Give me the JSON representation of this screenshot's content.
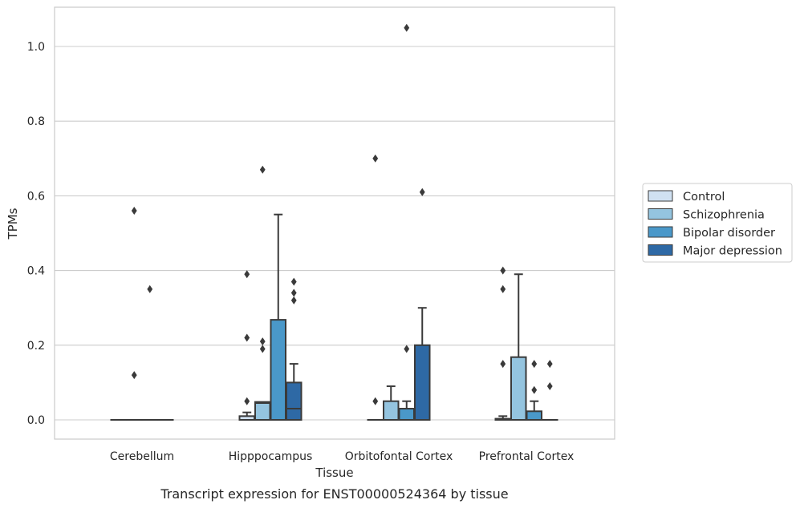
{
  "chart_data": {
    "type": "box",
    "title": "",
    "caption": "Transcript expression for ENST00000524364 by tissue",
    "xlabel": "Tissue",
    "ylabel": "TPMs",
    "ylim": [
      -0.05,
      1.1
    ],
    "yticks": [
      0.0,
      0.2,
      0.4,
      0.6,
      0.8,
      1.0
    ],
    "ytick_labels": [
      "0.0",
      "0.2",
      "0.4",
      "0.6",
      "0.8",
      "1.0"
    ],
    "grid": true,
    "legend_position": "right",
    "categories": [
      "Cerebellum",
      "Hipppocampus",
      "Orbitofontal Cortex",
      "Prefrontal Cortex"
    ],
    "series": [
      {
        "name": "Control",
        "color": "#d0e1f2",
        "boxes": [
          {
            "q1": 0,
            "median": 0,
            "q3": 0,
            "whislo": 0,
            "whishi": 0,
            "fliers": []
          },
          {
            "q1": 0,
            "median": 0,
            "q3": 0.01,
            "whislo": 0,
            "whishi": 0.02,
            "fliers": [
              0.05,
              0.22,
              0.39
            ]
          },
          {
            "q1": 0,
            "median": 0,
            "q3": 0,
            "whislo": 0,
            "whishi": 0,
            "fliers": [
              0.05,
              0.7
            ]
          },
          {
            "q1": 0,
            "median": 0,
            "q3": 0.003,
            "whislo": 0,
            "whishi": 0.01,
            "fliers": [
              0.15,
              0.35,
              0.4
            ]
          }
        ]
      },
      {
        "name": "Schizophrenia",
        "color": "#94c4df",
        "boxes": [
          {
            "q1": 0,
            "median": 0,
            "q3": 0,
            "whislo": 0,
            "whishi": 0,
            "fliers": [
              0.12,
              0.56
            ]
          },
          {
            "q1": 0,
            "median": 0.045,
            "q3": 0.048,
            "whislo": 0,
            "whishi": 0.048,
            "fliers": [
              0.19,
              0.21,
              0.67
            ]
          },
          {
            "q1": 0,
            "median": 0,
            "q3": 0.05,
            "whislo": 0,
            "whishi": 0.09,
            "fliers": []
          },
          {
            "q1": 0,
            "median": 0,
            "q3": 0.168,
            "whislo": 0,
            "whishi": 0.39,
            "fliers": []
          }
        ]
      },
      {
        "name": "Bipolar disorder",
        "color": "#4a98c9",
        "boxes": [
          {
            "q1": 0,
            "median": 0,
            "q3": 0,
            "whislo": 0,
            "whishi": 0,
            "fliers": [
              0.35
            ]
          },
          {
            "q1": 0,
            "median": 0,
            "q3": 0.268,
            "whislo": 0,
            "whishi": 0.55,
            "fliers": []
          },
          {
            "q1": 0,
            "median": 0,
            "q3": 0.03,
            "whislo": 0,
            "whishi": 0.05,
            "fliers": [
              0.19,
              1.05
            ]
          },
          {
            "q1": 0,
            "median": 0,
            "q3": 0.023,
            "whislo": 0,
            "whishi": 0.05,
            "fliers": [
              0.08,
              0.15
            ]
          }
        ]
      },
      {
        "name": "Major depression",
        "color": "#2e69a5",
        "boxes": [
          {
            "q1": 0,
            "median": 0,
            "q3": 0,
            "whislo": 0,
            "whishi": 0,
            "fliers": []
          },
          {
            "q1": 0,
            "median": 0.03,
            "q3": 0.1,
            "whislo": 0,
            "whishi": 0.15,
            "fliers": [
              0.32,
              0.34,
              0.37
            ]
          },
          {
            "q1": 0,
            "median": 0,
            "q3": 0.2,
            "whislo": 0,
            "whishi": 0.3,
            "fliers": [
              0.61
            ]
          },
          {
            "q1": 0,
            "median": 0,
            "q3": 0,
            "whislo": 0,
            "whishi": 0,
            "fliers": [
              0.09,
              0.15
            ]
          }
        ]
      }
    ]
  }
}
